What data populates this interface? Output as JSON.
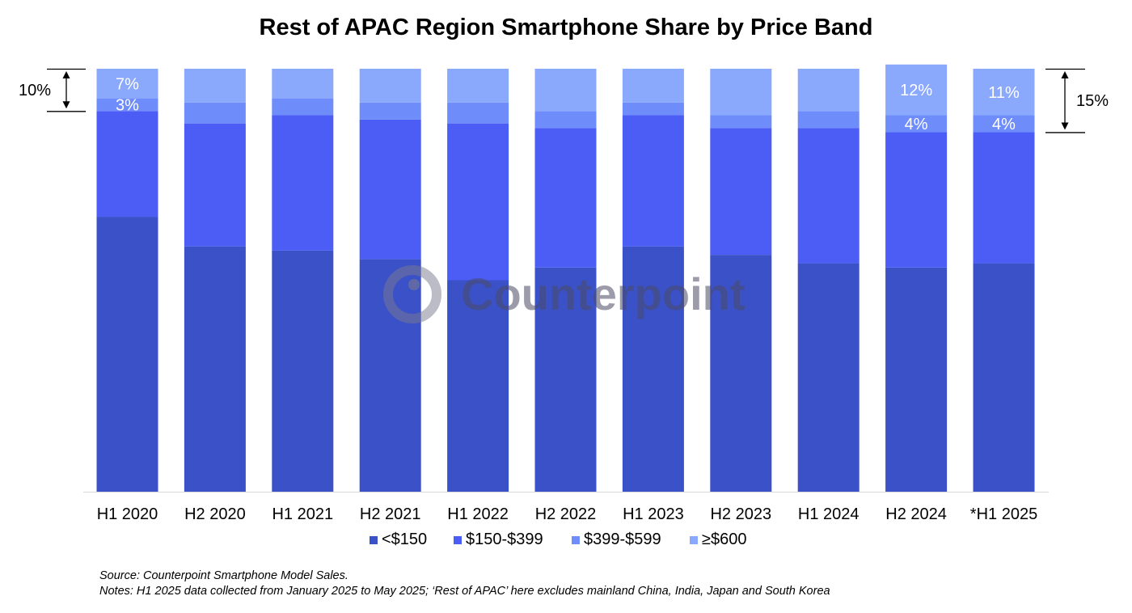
{
  "colors": {
    "lt150": "#3b51c8",
    "b150_399": "#4b5df5",
    "b399_599": "#6f8cfb",
    "ge600": "#8aa8fc"
  },
  "chart_data": {
    "type": "bar",
    "stacked": true,
    "title": "Rest of APAC Region Smartphone Share by Price Band",
    "xlabel": "",
    "ylabel": "",
    "ylim": [
      0,
      100
    ],
    "grid": false,
    "legend_position": "bottom",
    "categories": [
      "H1 2020",
      "H2 2020",
      "H1 2021",
      "H2 2021",
      "H1 2022",
      "H2 2022",
      "H1 2023",
      "H2 2023",
      "H1 2024",
      "H2 2024",
      "*H1 2025"
    ],
    "series": [
      {
        "name": "<$150",
        "color": "#3b51c8",
        "values": [
          65,
          58,
          57,
          55,
          50,
          53,
          58,
          56,
          54,
          53,
          54
        ]
      },
      {
        "name": "$150-$399",
        "color": "#4b5df5",
        "values": [
          25,
          29,
          32,
          33,
          37,
          33,
          31,
          30,
          32,
          32,
          31
        ]
      },
      {
        "name": "$399-$599",
        "color": "#6f8cfb",
        "values": [
          3,
          5,
          4,
          4,
          5,
          4,
          3,
          3,
          4,
          4,
          4
        ]
      },
      {
        "name": "≥$600",
        "color": "#8aa8fc",
        "values": [
          7,
          8,
          7,
          8,
          8,
          10,
          8,
          11,
          10,
          12,
          11
        ]
      }
    ],
    "data_labels": [
      {
        "category": "H1 2020",
        "series": "≥$600",
        "text": "7%"
      },
      {
        "category": "H1 2020",
        "series": "$399-$599",
        "text": "3%"
      },
      {
        "category": "H2 2024",
        "series": "≥$600",
        "text": "12%"
      },
      {
        "category": "H2 2024",
        "series": "$399-$599",
        "text": "4%"
      },
      {
        "category": "*H1 2025",
        "series": "≥$600",
        "text": "11%"
      },
      {
        "category": "*H1 2025",
        "series": "$399-$599",
        "text": "4%"
      }
    ],
    "annotations": [
      {
        "category": "H1 2020",
        "side": "left",
        "text": "10%",
        "value": 10
      },
      {
        "category": "*H1 2025",
        "side": "right",
        "text": "15%",
        "value": 15
      }
    ]
  },
  "watermark": "Counterpoint",
  "source": "Source: Counterpoint Smartphone Model Sales.",
  "notes": "Notes: H1 2025 data collected from January 2025 to May 2025; ‘Rest of APAC’ here excludes mainland China, India, Japan and South Korea"
}
